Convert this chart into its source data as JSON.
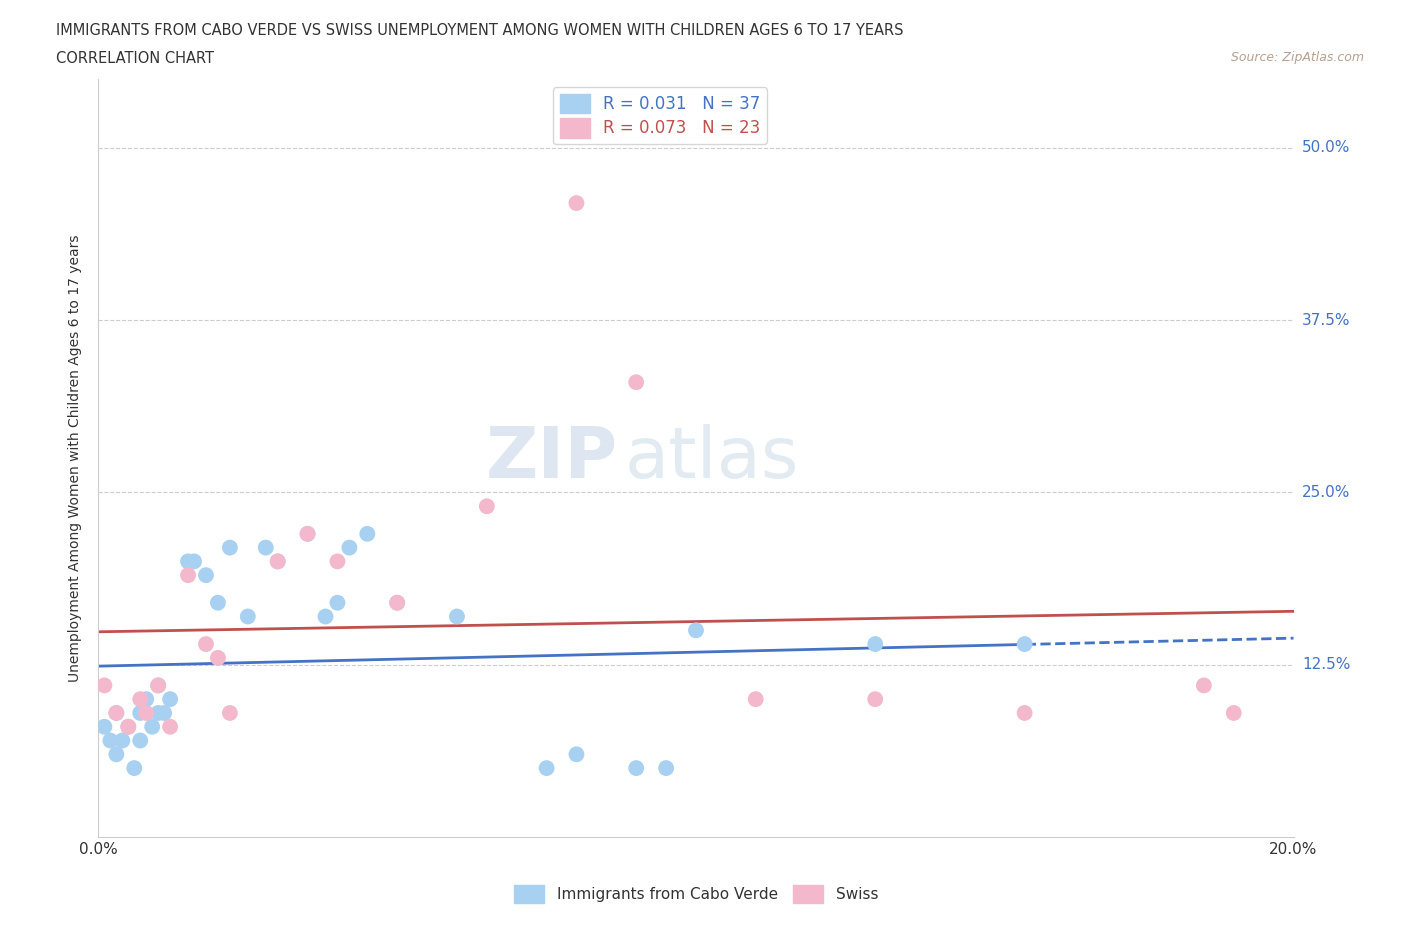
{
  "title_line1": "IMMIGRANTS FROM CABO VERDE VS SWISS UNEMPLOYMENT AMONG WOMEN WITH CHILDREN AGES 6 TO 17 YEARS",
  "title_line2": "CORRELATION CHART",
  "source_text": "Source: ZipAtlas.com",
  "ylabel": "Unemployment Among Women with Children Ages 6 to 17 years",
  "xlim": [
    0.0,
    0.2
  ],
  "ylim": [
    0.0,
    0.55
  ],
  "ytick_values": [
    0.0,
    0.125,
    0.25,
    0.375,
    0.5
  ],
  "ytick_labels": [
    "",
    "12.5%",
    "25.0%",
    "37.5%",
    "50.0%"
  ],
  "xtick_values": [
    0.0,
    0.025,
    0.05,
    0.075,
    0.1,
    0.125,
    0.15,
    0.175,
    0.2
  ],
  "xtick_labels": [
    "0.0%",
    "",
    "",
    "",
    "",
    "",
    "",
    "",
    "20.0%"
  ],
  "watermark_ZIP": "ZIP",
  "watermark_atlas": "atlas",
  "cabo_verde_color": "#a8d0f0",
  "swiss_color": "#f4b8cc",
  "cabo_verde_line_color": "#4472c4",
  "swiss_line_color": "#c0504d",
  "cabo_verde_R": 0.031,
  "cabo_verde_N": 37,
  "swiss_R": 0.073,
  "swiss_N": 23,
  "cabo_verde_x": [
    0.001,
    0.002,
    0.003,
    0.003,
    0.004,
    0.005,
    0.006,
    0.007,
    0.007,
    0.008,
    0.009,
    0.01,
    0.01,
    0.011,
    0.012,
    0.015,
    0.016,
    0.018,
    0.02,
    0.022,
    0.025,
    0.028,
    0.03,
    0.035,
    0.038,
    0.04,
    0.042,
    0.045,
    0.05,
    0.06,
    0.075,
    0.08,
    0.09,
    0.095,
    0.1,
    0.13,
    0.155
  ],
  "cabo_verde_y": [
    0.08,
    0.07,
    0.06,
    0.09,
    0.07,
    0.08,
    0.05,
    0.09,
    0.07,
    0.1,
    0.08,
    0.09,
    0.11,
    0.09,
    0.1,
    0.2,
    0.2,
    0.19,
    0.17,
    0.21,
    0.16,
    0.21,
    0.2,
    0.22,
    0.16,
    0.17,
    0.21,
    0.22,
    0.17,
    0.16,
    0.05,
    0.06,
    0.05,
    0.05,
    0.15,
    0.14,
    0.14
  ],
  "swiss_x": [
    0.001,
    0.003,
    0.005,
    0.007,
    0.008,
    0.01,
    0.012,
    0.015,
    0.018,
    0.02,
    0.022,
    0.03,
    0.035,
    0.04,
    0.05,
    0.065,
    0.08,
    0.09,
    0.11,
    0.13,
    0.155,
    0.185,
    0.19
  ],
  "swiss_y": [
    0.11,
    0.09,
    0.08,
    0.1,
    0.09,
    0.11,
    0.08,
    0.19,
    0.14,
    0.13,
    0.09,
    0.2,
    0.22,
    0.2,
    0.17,
    0.24,
    0.46,
    0.33,
    0.1,
    0.1,
    0.09,
    0.11,
    0.09
  ],
  "grid_color": "#cccccc",
  "background_color": "#ffffff",
  "axis_color": "#cccccc",
  "text_color": "#333333",
  "legend_text_color1": "#4472c4",
  "legend_text_color2": "#c0504d",
  "source_color": "#b8a090"
}
